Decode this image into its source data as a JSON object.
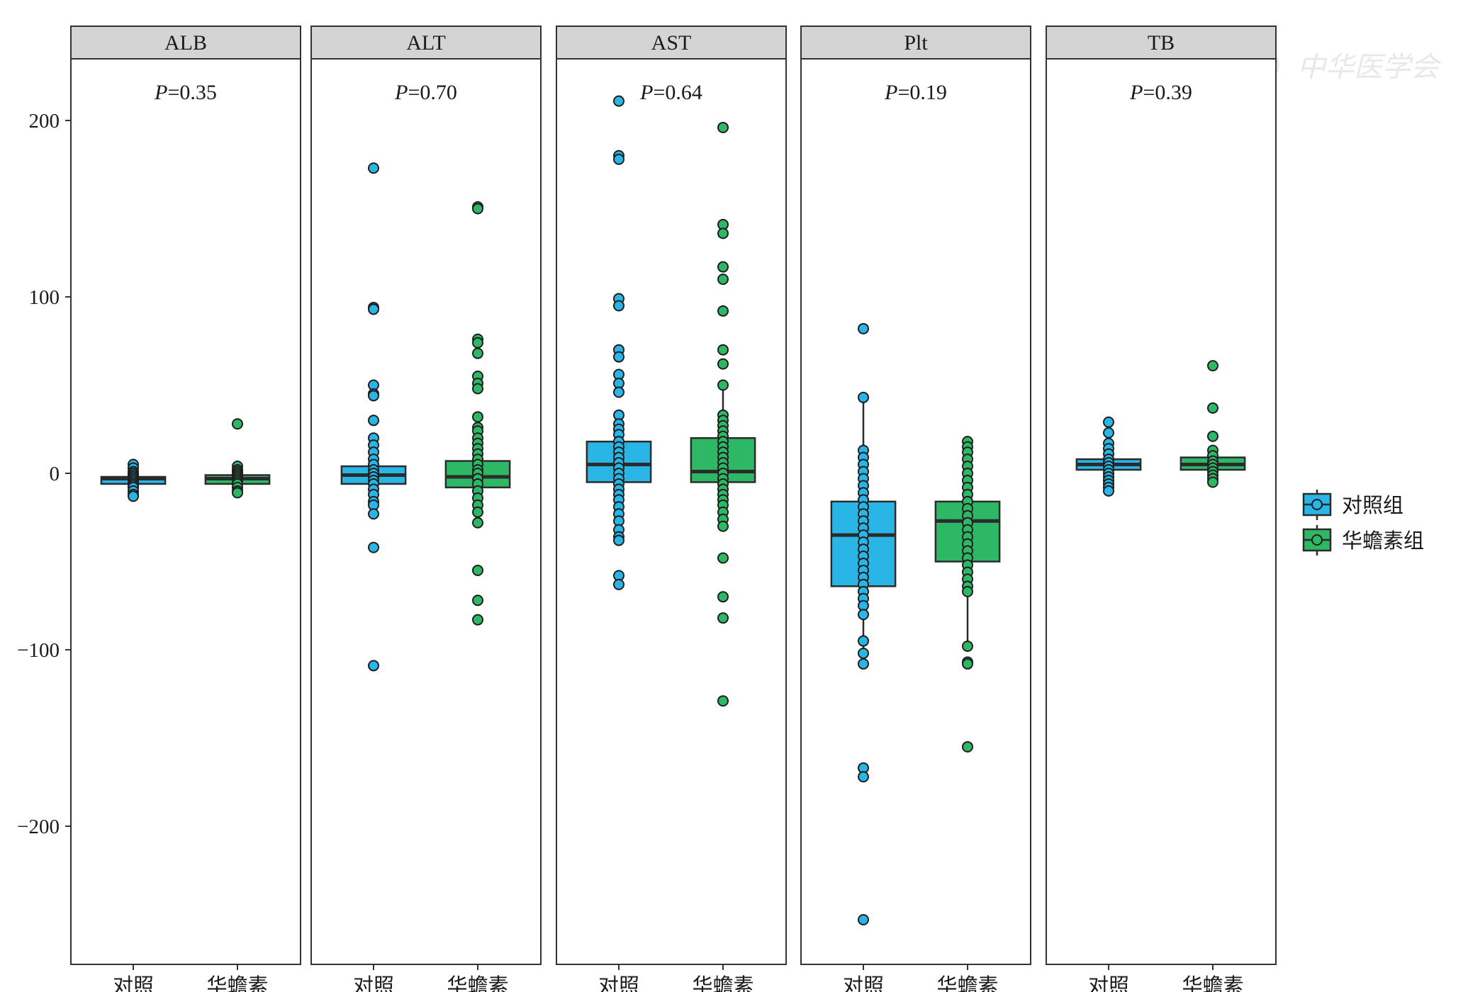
{
  "chart_data": {
    "type": "box",
    "title": "",
    "xlabel": "",
    "ylabel": "",
    "ylim": [
      -279,
      235
    ],
    "yticks": [
      200,
      100,
      0,
      -100,
      -200
    ],
    "ytick_labels": [
      "200",
      "100",
      "0",
      "−100",
      "−200"
    ],
    "categories": [
      "对照",
      "华蟾素"
    ],
    "legend": {
      "position": "right",
      "entries": [
        {
          "label": "对照组",
          "color": "#29b6e6"
        },
        {
          "label": "华蟾素组",
          "color": "#2eb866"
        }
      ]
    },
    "colors": {
      "control": "#29b6e6",
      "treatment": "#2eb866",
      "strip": "#d4d4d4",
      "median": "#2b2b2b"
    },
    "panels": [
      {
        "name": "ALB",
        "p_label": "P",
        "p_value": "=0.35",
        "groups": [
          {
            "group": "对照",
            "q1": -6,
            "median": -3,
            "q3": -2,
            "whisker_low": -6,
            "whisker_high": -2,
            "points": [
              5,
              3,
              1,
              0,
              -1,
              -2,
              -3,
              -4,
              -5,
              -6,
              -7,
              -8,
              -10,
              -12,
              -13
            ]
          },
          {
            "group": "华蟾素",
            "q1": -6,
            "median": -3,
            "q3": -1,
            "whisker_low": -6,
            "whisker_high": -1,
            "points": [
              28,
              4,
              2,
              1,
              0,
              -1,
              -2,
              -3,
              -4,
              -5,
              -6,
              -8,
              -10,
              -11
            ]
          }
        ]
      },
      {
        "name": "ALT",
        "p_label": "P",
        "p_value": "=0.70",
        "groups": [
          {
            "group": "对照",
            "q1": -6,
            "median": -1,
            "q3": 4,
            "whisker_low": -6,
            "whisker_high": 4,
            "points": [
              173,
              94,
              93,
              50,
              45,
              44,
              30,
              20,
              16,
              12,
              8,
              5,
              2,
              0,
              -2,
              -4,
              -6,
              -9,
              -12,
              -16,
              -18,
              -23,
              -42,
              -109
            ]
          },
          {
            "group": "华蟾素",
            "q1": -8,
            "median": -2,
            "q3": 7,
            "whisker_low": -8,
            "whisker_high": 7,
            "points": [
              151,
              150,
              76,
              74,
              68,
              55,
              51,
              48,
              32,
              26,
              24,
              20,
              17,
              14,
              11,
              8,
              5,
              2,
              0,
              -3,
              -6,
              -10,
              -14,
              -18,
              -22,
              -28,
              -55,
              -72,
              -83
            ]
          }
        ]
      },
      {
        "name": "AST",
        "p_label": "P",
        "p_value": "=0.64",
        "groups": [
          {
            "group": "对照",
            "q1": -5,
            "median": 5,
            "q3": 18,
            "whisker_low": -38,
            "whisker_high": 33,
            "points": [
              211,
              180,
              178,
              99,
              95,
              70,
              66,
              56,
              51,
              46,
              33,
              28,
              25,
              22,
              18,
              15,
              12,
              9,
              6,
              3,
              0,
              -3,
              -6,
              -9,
              -12,
              -15,
              -19,
              -23,
              -27,
              -32,
              -36,
              -38,
              -58,
              -63
            ]
          },
          {
            "group": "华蟾素",
            "q1": -5,
            "median": 1,
            "q3": 20,
            "whisker_low": -30,
            "whisker_high": 50,
            "points": [
              196,
              141,
              136,
              117,
              110,
              92,
              70,
              62,
              50,
              33,
              30,
              27,
              24,
              21,
              18,
              15,
              12,
              9,
              6,
              3,
              0,
              -3,
              -6,
              -9,
              -12,
              -15,
              -18,
              -22,
              -26,
              -30,
              -48,
              -70,
              -82,
              -129
            ]
          }
        ]
      },
      {
        "name": "Plt",
        "p_label": "P",
        "p_value": "=0.19",
        "groups": [
          {
            "group": "对照",
            "q1": -64,
            "median": -35,
            "q3": -16,
            "whisker_low": -108,
            "whisker_high": 43,
            "points": [
              82,
              43,
              13,
              9,
              5,
              1,
              -3,
              -7,
              -11,
              -15,
              -19,
              -23,
              -27,
              -31,
              -35,
              -39,
              -43,
              -47,
              -51,
              -55,
              -59,
              -63,
              -67,
              -71,
              -75,
              -80,
              -95,
              -102,
              -108,
              -167,
              -172,
              -253
            ]
          },
          {
            "group": "华蟾素",
            "q1": -50,
            "median": -27,
            "q3": -16,
            "whisker_low": -98,
            "whisker_high": 18,
            "points": [
              18,
              15,
              12,
              8,
              4,
              0,
              -4,
              -8,
              -12,
              -16,
              -20,
              -24,
              -28,
              -32,
              -36,
              -40,
              -44,
              -48,
              -52,
              -56,
              -60,
              -64,
              -67,
              -98,
              -107,
              -108,
              -155
            ]
          }
        ]
      },
      {
        "name": "TB",
        "p_label": "P",
        "p_value": "=0.39",
        "groups": [
          {
            "group": "对照",
            "q1": 2,
            "median": 5,
            "q3": 8,
            "whisker_low": 2,
            "whisker_high": 8,
            "points": [
              29,
              23,
              17,
              14,
              11,
              8,
              6,
              4,
              2,
              0,
              -2,
              -4,
              -6,
              -8,
              -10
            ]
          },
          {
            "group": "华蟾素",
            "q1": 2,
            "median": 5,
            "q3": 9,
            "whisker_low": 2,
            "whisker_high": 9,
            "points": [
              61,
              37,
              21,
              13,
              10,
              7,
              5,
              3,
              1,
              -1,
              -3,
              -5
            ]
          }
        ]
      }
    ]
  },
  "watermark": {
    "text": "中华医学会"
  }
}
